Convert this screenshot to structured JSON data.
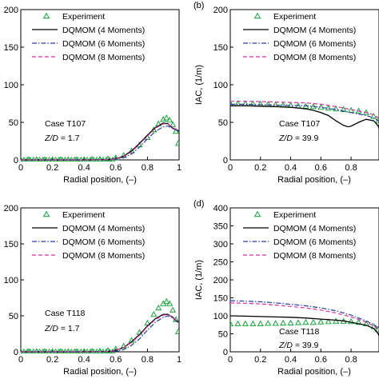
{
  "colors": {
    "experiment": "#2aa84a",
    "dqmom4": "#000000",
    "dqmom6": "#2b3d9e",
    "dqmom8": "#d0359a"
  },
  "chart_data": [
    {
      "type": "line",
      "panel_label": "",
      "xlabel": "Radial position, (–)",
      "ylabel": "",
      "xlim": [
        0,
        1
      ],
      "ylim": [
        0,
        200
      ],
      "x_ticks": [
        "0",
        "0.2",
        "0.4",
        "0.6",
        "0.8",
        "1"
      ],
      "y_ticks": [
        "0",
        "50",
        "100",
        "150",
        "200"
      ],
      "legend": [
        "Experiment",
        "DQMOM (4 Moments)",
        "DQMOM (6 Moments)",
        "DQMOM (8 Moments)"
      ],
      "annotation": [
        "Case T107",
        "Z/D = 1.7"
      ],
      "series": [
        {
          "name": "Experiment",
          "marker": "triangle",
          "x": [
            0,
            0.05,
            0.1,
            0.15,
            0.2,
            0.25,
            0.3,
            0.35,
            0.4,
            0.45,
            0.5,
            0.55,
            0.6,
            0.65,
            0.7,
            0.75,
            0.8,
            0.84,
            0.87,
            0.9,
            0.92,
            0.94,
            0.96,
            0.98,
            0.995
          ],
          "y": [
            0.5,
            0.5,
            0.5,
            0.5,
            0.5,
            0.5,
            0.5,
            0.5,
            0.6,
            0.8,
            1,
            1.5,
            3,
            6,
            12,
            20,
            30,
            40,
            48,
            54,
            56,
            53,
            47,
            38,
            22
          ]
        },
        {
          "name": "DQMOM (4 Moments)",
          "x": [
            0,
            0.1,
            0.2,
            0.3,
            0.4,
            0.5,
            0.55,
            0.6,
            0.65,
            0.7,
            0.75,
            0.8,
            0.85,
            0.9,
            0.93,
            0.96,
            0.98,
            1.0
          ],
          "y": [
            0,
            0,
            0,
            0,
            0,
            0.2,
            0.5,
            1.5,
            5,
            12,
            22,
            33,
            43,
            49,
            48,
            42,
            40,
            38
          ]
        },
        {
          "name": "DQMOM (6 Moments)",
          "x": [
            0,
            0.1,
            0.2,
            0.3,
            0.4,
            0.5,
            0.55,
            0.6,
            0.65,
            0.7,
            0.75,
            0.8,
            0.85,
            0.9,
            0.93,
            0.96,
            0.98,
            1.0
          ],
          "y": [
            0,
            0,
            0,
            0,
            0,
            0.1,
            0.3,
            1,
            3,
            8,
            17,
            28,
            38,
            44,
            45,
            42,
            40,
            39
          ]
        },
        {
          "name": "DQMOM (8 Moments)",
          "x": [
            0,
            0.1,
            0.2,
            0.3,
            0.4,
            0.5,
            0.55,
            0.6,
            0.65,
            0.7,
            0.75,
            0.8,
            0.85,
            0.9,
            0.93,
            0.96,
            0.98,
            1.0
          ],
          "y": [
            0,
            0,
            0,
            0,
            0,
            0.2,
            0.5,
            1.3,
            4.5,
            11,
            21,
            32,
            42,
            48,
            48,
            43,
            41,
            40
          ]
        }
      ]
    },
    {
      "type": "line",
      "panel_label": "(b)",
      "xlabel": "Radial position, (–)",
      "ylabel": "IAC, (1/m)",
      "xlim": [
        0,
        1
      ],
      "ylim": [
        0,
        200
      ],
      "x_ticks": [
        "0",
        "0.2",
        "0.4",
        "0.6",
        "0.8"
      ],
      "y_ticks": [
        "0",
        "50",
        "100",
        "150",
        "200"
      ],
      "legend": [
        "Experiment",
        "DQMOM (4 Moments)",
        "DQMOM (6 Moments)",
        "DQMOM (8 Moments)"
      ],
      "annotation": [
        "Case T107",
        "Z/D = 39.9"
      ],
      "series": [
        {
          "name": "Experiment",
          "marker": "triangle",
          "x": [
            0,
            0.05,
            0.1,
            0.15,
            0.2,
            0.25,
            0.3,
            0.35,
            0.4,
            0.45,
            0.5,
            0.55,
            0.6,
            0.65,
            0.7,
            0.75,
            0.8,
            0.85,
            0.9,
            0.95,
            0.98
          ],
          "y": [
            75,
            75,
            75,
            75,
            74.5,
            74,
            73.5,
            73,
            72.5,
            72,
            71.5,
            71,
            70,
            69,
            68,
            67,
            66,
            65,
            63,
            58,
            52
          ]
        },
        {
          "name": "DQMOM (4 Moments)",
          "x": [
            0,
            0.1,
            0.2,
            0.3,
            0.4,
            0.5,
            0.55,
            0.6,
            0.65,
            0.7,
            0.75,
            0.78,
            0.8,
            0.85,
            0.9,
            0.95,
            0.98,
            1.0
          ],
          "y": [
            72,
            72,
            71.5,
            71,
            70,
            68,
            66,
            63,
            59,
            52,
            46,
            44,
            45,
            50,
            54,
            52,
            45,
            30
          ]
        },
        {
          "name": "DQMOM (6 Moments)",
          "x": [
            0,
            0.1,
            0.2,
            0.3,
            0.4,
            0.5,
            0.6,
            0.7,
            0.8,
            0.85,
            0.9,
            0.95,
            0.98,
            1.0
          ],
          "y": [
            74,
            74,
            73.5,
            73,
            72.5,
            72,
            70,
            67,
            63,
            61,
            59,
            56,
            52,
            45
          ]
        },
        {
          "name": "DQMOM (8 Moments)",
          "x": [
            0,
            0.1,
            0.2,
            0.3,
            0.4,
            0.5,
            0.6,
            0.7,
            0.8,
            0.85,
            0.9,
            0.95,
            0.98,
            1.0
          ],
          "y": [
            78,
            78,
            77.5,
            77,
            76.5,
            76,
            74,
            71,
            67,
            65,
            63,
            60,
            56,
            50
          ]
        }
      ]
    },
    {
      "type": "line",
      "panel_label": "",
      "xlabel": "Radial position, (–)",
      "ylabel": "",
      "xlim": [
        0,
        1
      ],
      "ylim": [
        0,
        200
      ],
      "x_ticks": [
        "0",
        "0.2",
        "0.4",
        "0.6",
        "0.8",
        "1"
      ],
      "y_ticks": [
        "0",
        "50",
        "100",
        "150",
        "200"
      ],
      "legend": [
        "Experiment",
        "DQMOM (4 Moments)",
        "DQMOM (6 Moments)",
        "DQMOM (8 Moments)"
      ],
      "annotation": [
        "Case T118",
        "Z/D = 1.7"
      ],
      "series": [
        {
          "name": "Experiment",
          "marker": "triangle",
          "x": [
            0,
            0.05,
            0.1,
            0.15,
            0.2,
            0.25,
            0.3,
            0.35,
            0.4,
            0.45,
            0.5,
            0.55,
            0.6,
            0.65,
            0.7,
            0.75,
            0.8,
            0.84,
            0.87,
            0.9,
            0.92,
            0.94,
            0.96,
            0.98,
            0.995
          ],
          "y": [
            0.5,
            0.5,
            0.5,
            0.5,
            0.5,
            0.5,
            0.5,
            0.5,
            0.6,
            0.8,
            1,
            2,
            4,
            8,
            16,
            27,
            40,
            52,
            61,
            67,
            70,
            67,
            58,
            45,
            28
          ]
        },
        {
          "name": "DQMOM (4 Moments)",
          "x": [
            0,
            0.1,
            0.2,
            0.3,
            0.4,
            0.5,
            0.55,
            0.6,
            0.65,
            0.7,
            0.75,
            0.8,
            0.85,
            0.9,
            0.93,
            0.96,
            0.98,
            1.0
          ],
          "y": [
            0,
            0,
            0,
            0,
            0,
            0.2,
            0.5,
            2,
            6,
            14,
            24,
            36,
            46,
            52,
            52,
            48,
            44,
            40
          ]
        },
        {
          "name": "DQMOM (6 Moments)",
          "x": [
            0,
            0.1,
            0.2,
            0.3,
            0.4,
            0.5,
            0.55,
            0.6,
            0.65,
            0.7,
            0.75,
            0.8,
            0.85,
            0.9,
            0.93,
            0.96,
            0.98,
            1.0
          ],
          "y": [
            0,
            0,
            0,
            0,
            0,
            0.1,
            0.3,
            1,
            3,
            9,
            18,
            30,
            41,
            48,
            50,
            47,
            43,
            40
          ]
        },
        {
          "name": "DQMOM (8 Moments)",
          "x": [
            0,
            0.1,
            0.2,
            0.3,
            0.4,
            0.5,
            0.55,
            0.6,
            0.65,
            0.7,
            0.75,
            0.8,
            0.85,
            0.9,
            0.93,
            0.96,
            0.98,
            1.0
          ],
          "y": [
            0,
            0,
            0,
            0,
            0,
            0.2,
            0.5,
            2,
            6,
            13,
            23,
            35,
            45,
            51,
            52,
            48,
            44,
            40
          ]
        }
      ]
    },
    {
      "type": "line",
      "panel_label": "(d)",
      "xlabel": "Radial position, (–)",
      "ylabel": "IAC, (1/m)",
      "xlim": [
        0,
        1
      ],
      "ylim": [
        0,
        400
      ],
      "x_ticks": [
        "0",
        "0.2",
        "0.4",
        "0.6",
        "0.8"
      ],
      "y_ticks": [
        "0",
        "50",
        "100",
        "150",
        "200",
        "250",
        "300",
        "350",
        "400"
      ],
      "legend": [
        "Experiment",
        "DQMOM (4 Moments)",
        "DQMOM (6 Moments)",
        "DQMOM (8 Moments)"
      ],
      "annotation": [
        "Case T118",
        "Z/D = 39.9"
      ],
      "series": [
        {
          "name": "Experiment",
          "marker": "triangle",
          "x": [
            0,
            0.05,
            0.1,
            0.15,
            0.2,
            0.25,
            0.3,
            0.35,
            0.4,
            0.45,
            0.5,
            0.55,
            0.6,
            0.65,
            0.7,
            0.75,
            0.8,
            0.85,
            0.9,
            0.95,
            0.98
          ],
          "y": [
            78,
            78,
            78,
            78,
            78,
            79,
            79,
            80,
            80,
            81,
            82,
            82,
            83,
            84,
            85,
            85,
            84,
            82,
            78,
            70,
            62
          ]
        },
        {
          "name": "DQMOM (4 Moments)",
          "x": [
            0,
            0.1,
            0.2,
            0.3,
            0.4,
            0.5,
            0.6,
            0.7,
            0.75,
            0.8,
            0.85,
            0.9,
            0.95,
            0.98,
            1.0
          ],
          "y": [
            100,
            99,
            98,
            97,
            96,
            94,
            91,
            88,
            86,
            82,
            78,
            74,
            65,
            50,
            30
          ]
        },
        {
          "name": "DQMOM (6 Moments)",
          "x": [
            0,
            0.1,
            0.2,
            0.3,
            0.4,
            0.5,
            0.6,
            0.7,
            0.8,
            0.85,
            0.9,
            0.95,
            0.98,
            1.0
          ],
          "y": [
            142,
            141,
            139,
            136,
            132,
            128,
            122,
            114,
            102,
            94,
            86,
            76,
            66,
            55
          ]
        },
        {
          "name": "DQMOM (8 Moments)",
          "x": [
            0,
            0.1,
            0.2,
            0.3,
            0.4,
            0.5,
            0.6,
            0.7,
            0.8,
            0.85,
            0.9,
            0.95,
            0.98,
            1.0
          ],
          "y": [
            136,
            135,
            133,
            130,
            126,
            122,
            116,
            108,
            97,
            90,
            82,
            72,
            63,
            52
          ]
        }
      ]
    }
  ]
}
